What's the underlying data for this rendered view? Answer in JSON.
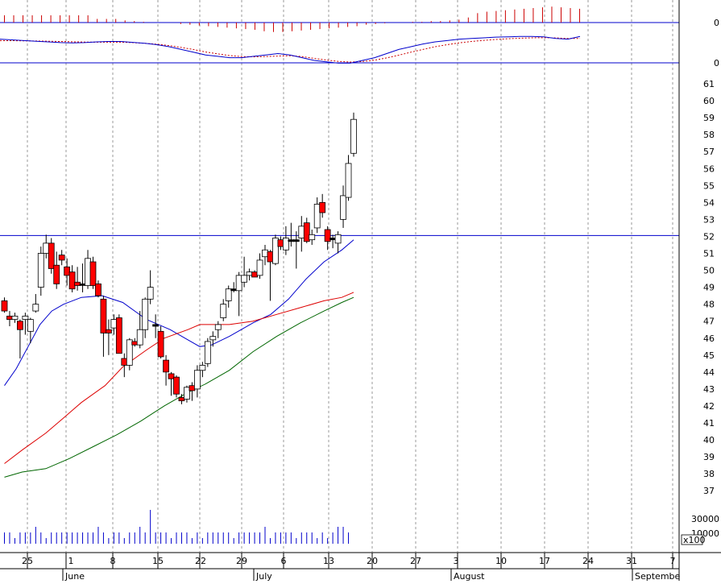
{
  "colors": {
    "up_fill": "#ffffff",
    "down_fill": "#ff0000",
    "doji_fill": "#000000",
    "ma_short": "#0000cc",
    "ma_mid": "#dd0000",
    "ma_long": "#006600",
    "grid": "#9a9a9a",
    "level_line": "#0000cc",
    "volume": "#0000cc",
    "macd_hist": "#cc0000",
    "macd_line": "#0000cc",
    "macd_signal": "#cc0000"
  },
  "chart_data": {
    "type": "candlestick",
    "title": "",
    "price_axis": {
      "ticks": [
        37,
        38,
        39,
        40,
        41,
        42,
        43,
        44,
        45,
        46,
        47,
        48,
        49,
        50,
        51,
        52,
        53,
        54,
        55,
        56,
        57,
        58,
        59,
        60,
        61
      ],
      "ylim": [
        36.6,
        61.3
      ],
      "grid": true
    },
    "horizontal_level": 52.05,
    "macd_panel": {
      "zero_labels": [
        "0",
        "0"
      ]
    },
    "volume_axis": {
      "ticks": [
        "30000",
        "10000"
      ],
      "unit_label": "x100"
    },
    "x_axis": {
      "day_labels": [
        "25",
        "1",
        "8",
        "15",
        "22",
        "29",
        "6",
        "13",
        "20",
        "27",
        "3",
        "10",
        "17",
        "24",
        "31",
        "7"
      ],
      "month_labels": [
        "June",
        "July",
        "August",
        "Septembe"
      ]
    },
    "candles": [
      {
        "d": "May 21",
        "o": 48.2,
        "h": 48.4,
        "l": 47.5,
        "c": 47.6
      },
      {
        "d": "May 22",
        "o": 47.3,
        "h": 47.6,
        "l": 46.7,
        "c": 47.1
      },
      {
        "d": "May 23",
        "o": 47.1,
        "h": 47.5,
        "l": 46.9,
        "c": 47.3
      },
      {
        "d": "May 26",
        "o": 47.0,
        "h": 47.1,
        "l": 44.8,
        "c": 46.5
      },
      {
        "d": "May 27",
        "o": 47.1,
        "h": 47.5,
        "l": 46.2,
        "c": 47.3
      },
      {
        "d": "May 28",
        "o": 46.4,
        "h": 47.2,
        "l": 45.7,
        "c": 47.1
      },
      {
        "d": "May 29",
        "o": 47.6,
        "h": 48.6,
        "l": 47.5,
        "c": 48.0
      },
      {
        "d": "May 30",
        "o": 49.0,
        "h": 51.4,
        "l": 48.5,
        "c": 51.0
      },
      {
        "d": "Jun 2",
        "o": 51.0,
        "h": 52.1,
        "l": 50.7,
        "c": 51.6
      },
      {
        "d": "Jun 3",
        "o": 51.6,
        "h": 51.9,
        "l": 49.8,
        "c": 50.1
      },
      {
        "d": "Jun 4",
        "o": 50.3,
        "h": 51.1,
        "l": 48.9,
        "c": 49.2
      },
      {
        "d": "Jun 5",
        "o": 50.9,
        "h": 51.2,
        "l": 50.3,
        "c": 50.6
      },
      {
        "d": "Jun 6",
        "o": 50.2,
        "h": 50.7,
        "l": 49.1,
        "c": 49.7
      },
      {
        "d": "Jun 9",
        "o": 49.9,
        "h": 50.3,
        "l": 48.7,
        "c": 48.9
      },
      {
        "d": "Jun 10",
        "o": 49.3,
        "h": 50.2,
        "l": 48.8,
        "c": 49.1
      },
      {
        "d": "Jun 11",
        "o": 49.2,
        "h": 50.4,
        "l": 48.7,
        "c": 49.2
      },
      {
        "d": "Jun 12",
        "o": 49.1,
        "h": 51.2,
        "l": 48.9,
        "c": 50.7
      },
      {
        "d": "Jun 13",
        "o": 50.5,
        "h": 50.8,
        "l": 48.9,
        "c": 49.1
      },
      {
        "d": "Jun 16",
        "o": 49.2,
        "h": 49.4,
        "l": 48.4,
        "c": 48.5
      },
      {
        "d": "Jun 17",
        "o": 48.3,
        "h": 48.5,
        "l": 44.9,
        "c": 46.3
      },
      {
        "d": "Jun 18",
        "o": 46.5,
        "h": 47.1,
        "l": 45.0,
        "c": 46.3
      },
      {
        "d": "Jun 19",
        "o": 46.6,
        "h": 47.4,
        "l": 46.2,
        "c": 47.1
      },
      {
        "d": "Jun 20",
        "o": 47.2,
        "h": 47.4,
        "l": 45.2,
        "c": 45.1
      },
      {
        "d": "Jun 23",
        "o": 44.8,
        "h": 45.1,
        "l": 43.7,
        "c": 44.4
      },
      {
        "d": "Jun 24",
        "o": 44.4,
        "h": 46.0,
        "l": 44.1,
        "c": 45.9
      },
      {
        "d": "Jun 25",
        "o": 45.8,
        "h": 46.0,
        "l": 45.5,
        "c": 45.6
      },
      {
        "d": "Jun 26",
        "o": 45.6,
        "h": 47.6,
        "l": 45.4,
        "c": 46.5
      },
      {
        "d": "Jun 27",
        "o": 46.5,
        "h": 48.4,
        "l": 46.0,
        "c": 48.3
      },
      {
        "d": "Jun 30",
        "o": 48.3,
        "h": 50.0,
        "l": 48.0,
        "c": 49.0
      },
      {
        "d": "Jul 1",
        "o": 46.8,
        "h": 47.4,
        "l": 46.0,
        "c": 46.7
      },
      {
        "d": "Jul 2",
        "o": 46.4,
        "h": 46.7,
        "l": 44.8,
        "c": 44.9
      },
      {
        "d": "Jul 3",
        "o": 44.7,
        "h": 45.0,
        "l": 43.2,
        "c": 44.0
      },
      {
        "d": "Jul 7",
        "o": 43.9,
        "h": 44.0,
        "l": 42.6,
        "c": 43.6
      },
      {
        "d": "Jul 8",
        "o": 43.7,
        "h": 43.8,
        "l": 42.5,
        "c": 42.7
      },
      {
        "d": "Jul 9",
        "o": 42.5,
        "h": 42.7,
        "l": 42.1,
        "c": 42.3
      },
      {
        "d": "Jul 10",
        "o": 42.4,
        "h": 43.2,
        "l": 42.2,
        "c": 43.1
      },
      {
        "d": "Jul 11",
        "o": 43.2,
        "h": 43.4,
        "l": 42.3,
        "c": 42.9
      },
      {
        "d": "Jul 14",
        "o": 43.0,
        "h": 44.4,
        "l": 42.5,
        "c": 44.1
      },
      {
        "d": "Jul 15",
        "o": 44.1,
        "h": 44.6,
        "l": 43.7,
        "c": 44.4
      },
      {
        "d": "Jul 16",
        "o": 44.5,
        "h": 46.0,
        "l": 44.3,
        "c": 45.8
      },
      {
        "d": "Jul 17",
        "o": 45.9,
        "h": 46.4,
        "l": 45.5,
        "c": 46.1
      },
      {
        "d": "Jul 18",
        "o": 46.5,
        "h": 47.0,
        "l": 46.0,
        "c": 46.8
      },
      {
        "d": "Jul 21",
        "o": 47.2,
        "h": 48.3,
        "l": 47.0,
        "c": 48.0
      },
      {
        "d": "Jul 22",
        "o": 48.2,
        "h": 49.1,
        "l": 47.8,
        "c": 48.9
      },
      {
        "d": "Jul 23",
        "o": 48.9,
        "h": 49.3,
        "l": 48.7,
        "c": 48.8
      },
      {
        "d": "Jul 24",
        "o": 48.8,
        "h": 49.9,
        "l": 47.3,
        "c": 49.7
      },
      {
        "d": "Jul 25",
        "o": 49.3,
        "h": 50.8,
        "l": 49.0,
        "c": 49.7
      },
      {
        "d": "Jul 28",
        "o": 49.7,
        "h": 50.1,
        "l": 49.4,
        "c": 49.9
      },
      {
        "d": "Jul 29",
        "o": 49.9,
        "h": 50.0,
        "l": 49.6,
        "c": 49.6
      },
      {
        "d": "Jul 30",
        "o": 49.7,
        "h": 51.0,
        "l": 49.5,
        "c": 50.6
      },
      {
        "d": "Jul 31",
        "o": 50.8,
        "h": 51.5,
        "l": 50.3,
        "c": 51.2
      },
      {
        "d": "Aug 1",
        "o": 51.1,
        "h": 51.2,
        "l": 48.2,
        "c": 50.5
      },
      {
        "d": "Aug 4",
        "o": 50.4,
        "h": 52.1,
        "l": 50.3,
        "c": 51.9
      },
      {
        "d": "Aug 5",
        "o": 51.8,
        "h": 52.0,
        "l": 51.2,
        "c": 51.4
      },
      {
        "d": "Aug 6",
        "o": 51.2,
        "h": 52.6,
        "l": 50.9,
        "c": 51.9
      },
      {
        "d": "Aug 7",
        "o": 51.7,
        "h": 52.8,
        "l": 51.4,
        "c": 51.8
      },
      {
        "d": "Aug 8",
        "o": 51.7,
        "h": 52.3,
        "l": 50.1,
        "c": 51.8
      },
      {
        "d": "Aug 11",
        "o": 51.9,
        "h": 53.2,
        "l": 51.1,
        "c": 52.6
      },
      {
        "d": "Aug 12",
        "o": 52.8,
        "h": 53.1,
        "l": 51.6,
        "c": 51.7
      },
      {
        "d": "Aug 13",
        "o": 51.8,
        "h": 52.4,
        "l": 51.5,
        "c": 52.1
      },
      {
        "d": "Aug 14",
        "o": 52.5,
        "h": 54.3,
        "l": 52.2,
        "c": 53.9
      },
      {
        "d": "Aug 15",
        "o": 54.0,
        "h": 54.5,
        "l": 53.1,
        "c": 53.4
      },
      {
        "d": "Aug 18",
        "o": 52.4,
        "h": 52.6,
        "l": 51.2,
        "c": 51.7
      },
      {
        "d": "Aug 19",
        "o": 51.8,
        "h": 52.1,
        "l": 51.3,
        "c": 51.9
      },
      {
        "d": "Aug 20",
        "o": 51.6,
        "h": 52.3,
        "l": 51.0,
        "c": 52.1
      },
      {
        "d": "Aug 21",
        "o": 53.0,
        "h": 55.0,
        "l": 52.5,
        "c": 54.4
      },
      {
        "d": "Aug 22",
        "o": 54.3,
        "h": 56.8,
        "l": 54.1,
        "c": 56.3
      },
      {
        "d": "Aug 23",
        "o": 56.9,
        "h": 59.3,
        "l": 56.7,
        "c": 58.9
      }
    ],
    "moving_averages": [
      {
        "color_key": "ma_short",
        "points": [
          [
            0,
            43.2
          ],
          [
            4,
            44.2
          ],
          [
            8,
            45.5
          ],
          [
            12,
            46.8
          ],
          [
            16,
            47.6
          ],
          [
            20,
            48.0
          ],
          [
            26,
            48.4
          ],
          [
            33,
            48.5
          ],
          [
            40,
            48.1
          ],
          [
            48,
            47.1
          ],
          [
            56,
            46.5
          ],
          [
            62,
            45.9
          ],
          [
            66,
            45.5
          ],
          [
            70,
            45.6
          ],
          [
            76,
            46.1
          ],
          [
            84,
            46.9
          ],
          [
            90,
            47.4
          ],
          [
            96,
            48.3
          ],
          [
            102,
            49.5
          ],
          [
            108,
            50.5
          ],
          [
            114,
            51.2
          ],
          [
            118,
            51.8
          ]
        ]
      },
      {
        "color_key": "ma_mid",
        "points": [
          [
            0,
            38.6
          ],
          [
            6,
            39.4
          ],
          [
            14,
            40.4
          ],
          [
            20,
            41.3
          ],
          [
            26,
            42.2
          ],
          [
            34,
            43.2
          ],
          [
            40,
            44.3
          ],
          [
            48,
            45.3
          ],
          [
            54,
            46.0
          ],
          [
            62,
            46.5
          ],
          [
            66,
            46.8
          ],
          [
            76,
            46.8
          ],
          [
            84,
            47.0
          ],
          [
            92,
            47.4
          ],
          [
            100,
            47.8
          ],
          [
            108,
            48.2
          ],
          [
            114,
            48.4
          ],
          [
            118,
            48.7
          ]
        ]
      },
      {
        "color_key": "ma_long",
        "points": [
          [
            0,
            37.8
          ],
          [
            6,
            38.1
          ],
          [
            14,
            38.3
          ],
          [
            22,
            38.9
          ],
          [
            30,
            39.6
          ],
          [
            38,
            40.3
          ],
          [
            46,
            41.1
          ],
          [
            54,
            42.0
          ],
          [
            62,
            42.8
          ],
          [
            68,
            43.3
          ],
          [
            76,
            44.1
          ],
          [
            84,
            45.2
          ],
          [
            92,
            46.1
          ],
          [
            100,
            46.9
          ],
          [
            108,
            47.6
          ],
          [
            114,
            48.1
          ],
          [
            118,
            48.4
          ]
        ]
      }
    ],
    "volume": [
      2,
      2,
      1,
      2,
      2,
      2,
      3,
      2,
      1,
      2,
      2,
      2,
      2,
      2,
      2,
      2,
      2,
      2,
      3,
      2,
      1,
      2,
      2,
      1,
      2,
      2,
      3,
      2,
      6,
      2,
      2,
      2,
      1,
      2,
      2,
      2,
      1,
      2,
      1,
      2,
      2,
      2,
      2,
      2,
      1,
      2,
      2,
      2,
      2,
      2,
      3,
      1,
      2,
      2,
      2,
      2,
      1,
      2,
      2,
      2,
      1,
      2,
      1,
      2,
      3,
      3,
      2
    ],
    "macd_hist": [
      0,
      0,
      0,
      0,
      0,
      0,
      0,
      0,
      0,
      0,
      0,
      0,
      0,
      0,
      0,
      0,
      0,
      0,
      0,
      0,
      0,
      0,
      0,
      0,
      0,
      0,
      0,
      0,
      0,
      0,
      0,
      0,
      0,
      0,
      0,
      0,
      0,
      0,
      0,
      0,
      0,
      0,
      0,
      0,
      0,
      0,
      0,
      0,
      0,
      0,
      0,
      0,
      0,
      0,
      0,
      0,
      0,
      0,
      0,
      0,
      0,
      0,
      0,
      0,
      0,
      0,
      0
    ],
    "macd_hist_series": [
      1,
      1,
      1,
      1,
      1,
      1,
      1,
      1,
      1,
      1,
      0.5,
      0.5,
      0.5,
      0.3,
      0.2,
      0.1,
      0,
      0,
      0,
      -0.2,
      -0.3,
      -0.4,
      -0.5,
      -0.6,
      -0.7,
      -0.8,
      -0.9,
      -1,
      -1.2,
      -1.3,
      -1.3,
      -1.2,
      -1.1,
      -1,
      -0.9,
      -0.8,
      -0.7,
      -0.6,
      -0.5,
      -0.3,
      -0.2,
      -0.1,
      0,
      0,
      0.1,
      0.1,
      0.2,
      0.2,
      0.3,
      0.4,
      0.7,
      1.3,
      1.5,
      1.6,
      1.7,
      1.8,
      1.9,
      2,
      2.1,
      2.2,
      2.1,
      2,
      1.9,
      1.8,
      1.8,
      1.8,
      1.9
    ],
    "macd_line": [
      0.55,
      0.5,
      0.45,
      0.4,
      0.35,
      0.3,
      0.28,
      0.3,
      0.35,
      0.38,
      0.38,
      0.32,
      0.25,
      0.15,
      0,
      -0.2,
      -0.4,
      -0.6,
      -0.7,
      -0.8,
      -0.8,
      -0.7,
      -0.6,
      -0.5,
      -0.6,
      -0.8,
      -1,
      -1.1,
      -1.2,
      -1.2,
      -1,
      -0.8,
      -0.5,
      -0.2,
      0,
      0.2,
      0.35,
      0.45,
      0.55,
      0.6,
      0.65,
      0.7,
      0.72,
      0.75,
      0.75,
      0.72,
      0.6,
      0.55,
      0.75
    ],
    "macd_signal": [
      0.45,
      0.44,
      0.43,
      0.42,
      0.4,
      0.38,
      0.36,
      0.34,
      0.33,
      0.33,
      0.33,
      0.3,
      0.25,
      0.18,
      0.08,
      -0.05,
      -0.2,
      -0.38,
      -0.52,
      -0.65,
      -0.72,
      -0.74,
      -0.72,
      -0.68,
      -0.66,
      -0.72,
      -0.85,
      -0.97,
      -1.07,
      -1.12,
      -1.08,
      -0.98,
      -0.82,
      -0.62,
      -0.4,
      -0.2,
      0,
      0.15,
      0.28,
      0.38,
      0.46,
      0.53,
      0.58,
      0.62,
      0.65,
      0.66,
      0.64,
      0.6,
      0.6
    ]
  }
}
